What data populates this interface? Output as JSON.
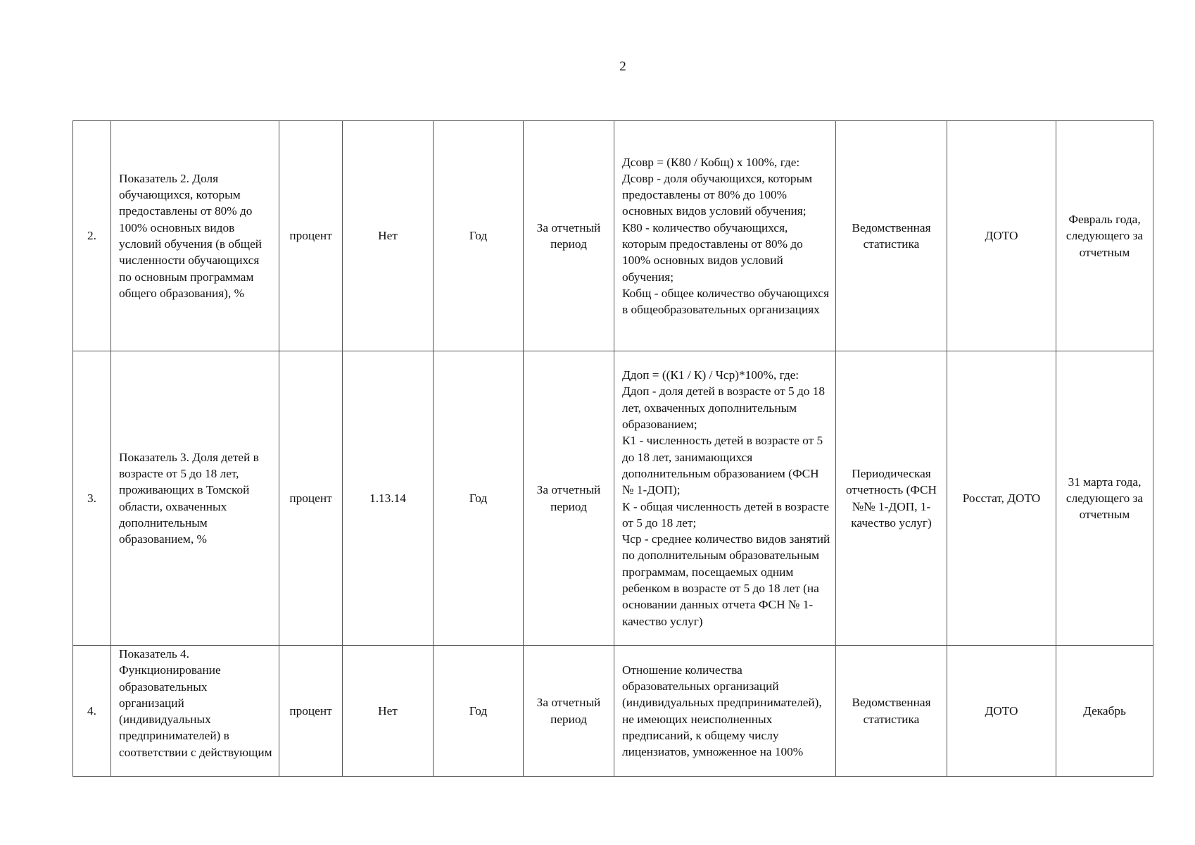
{
  "page_number": "2",
  "rows": [
    {
      "num": "2.",
      "name": "Показатель 2. Доля обучающихся, которым предоставлены от 80% до 100% основных видов условий обучения (в общей численности обучающихся по основным программам общего образования), %",
      "unit": "процент",
      "code": "Нет",
      "periodicity": "Год",
      "period": "За отчетный период",
      "method": "Дсовр = (К80 / Кобщ) x 100%, где:\nДсовр - доля обучающихся, которым предоставлены от 80% до 100% основных видов условий обучения;\nК80 - количество обучающихся, которым предоставлены от 80% до 100% основных видов условий обучения;\nКобщ - общее количество обучающихся в общеобразовательных организациях",
      "source": "Ведомственная статистика",
      "responsible": "ДОТО",
      "deadline": "Февраль года, следующего за отчетным"
    },
    {
      "num": "3.",
      "name": "Показатель 3. Доля детей в возрасте от 5 до 18 лет, проживающих в Томской области, охваченных дополнительным образованием, %",
      "unit": "процент",
      "code": "1.13.14",
      "periodicity": "Год",
      "period": "За отчетный период",
      "method": "Ддоп = ((К1 / К) / Чср)*100%, где:\nДдоп - доля детей в возрасте от 5 до 18 лет, охваченных дополнительным образованием;\nК1 - численность детей в возрасте от 5 до 18 лет, занимающихся дополнительным образованием (ФСН № 1-ДОП);\nК - общая численность детей в возрасте от 5 до 18 лет;\nЧср - среднее количество видов занятий по дополнительным образовательным программам, посещаемых одним ребенком в возрасте от 5 до 18 лет (на основании данных отчета ФСН № 1-качество услуг)",
      "source": "Периодическая отчетность (ФСН №№ 1-ДОП, 1-качество услуг)",
      "responsible": "Росстат, ДОТО",
      "deadline": "31 марта года, следующего за отчетным"
    },
    {
      "num": "4.",
      "name": "Показатель 4. Функционирование образовательных организаций (индивидуальных предпринимателей) в соответствии с действующим",
      "unit": "процент",
      "code": "Нет",
      "periodicity": "Год",
      "period": "За отчетный период",
      "method": "Отношение количества образовательных организаций (индивидуальных предпринимателей), не имеющих неисполненных предписаний, к общему числу лицензиатов, умноженное на 100%",
      "source": "Ведомственная статистика",
      "responsible": "ДОТО",
      "deadline": "Декабрь"
    }
  ]
}
